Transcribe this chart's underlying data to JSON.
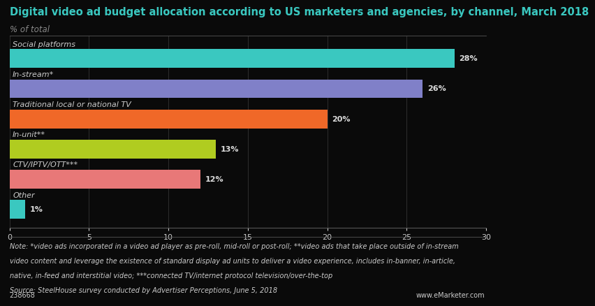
{
  "title": "Digital video ad budget allocation according to US marketers and agencies, by channel, March 2018",
  "subtitle": "% of total",
  "categories": [
    "Social platforms",
    "In-stream*",
    "Traditional local or national TV",
    "In-unit**",
    "CTV/IPTV/OTT***",
    "Other"
  ],
  "values": [
    28,
    26,
    20,
    13,
    12,
    1
  ],
  "bar_colors": [
    "#3ac8c0",
    "#8080c8",
    "#f06828",
    "#b0cc20",
    "#e87878",
    "#3ac8c0"
  ],
  "xlim": [
    0,
    30
  ],
  "xticks": [
    0,
    5,
    10,
    15,
    20,
    25,
    30
  ],
  "bar_height": 0.62,
  "value_labels": [
    "28%",
    "26%",
    "20%",
    "13%",
    "12%",
    "1%"
  ],
  "note_line1": "Note: *video ads incorporated in a video ad player as pre-roll, mid-roll or post-roll; **video ads that take place outside of in-stream",
  "note_line2": "video content and leverage the existence of standard display ad units to deliver a video experience, includes in-banner, in-article,",
  "note_line3": "native, in-feed and interstitial video; ***connected TV/internet protocol television/over-the-top",
  "note_line4": "Source: SteelHouse survey conducted by Advertiser Perceptions, June 5, 2018",
  "id_text": "238668",
  "url_text": "www.eMarketer.com",
  "bg_color": "#0a0a0a",
  "plot_bg_color": "#0a0a0a",
  "title_color": "#3ac8c0",
  "subtitle_color": "#888888",
  "text_color": "#cccccc",
  "label_text_color": "#dddddd",
  "grid_color": "#333333",
  "axis_color": "#555555",
  "title_fontsize": 10.5,
  "subtitle_fontsize": 8.5,
  "cat_fontsize": 8,
  "val_fontsize": 8,
  "tick_fontsize": 8,
  "note_fontsize": 7
}
